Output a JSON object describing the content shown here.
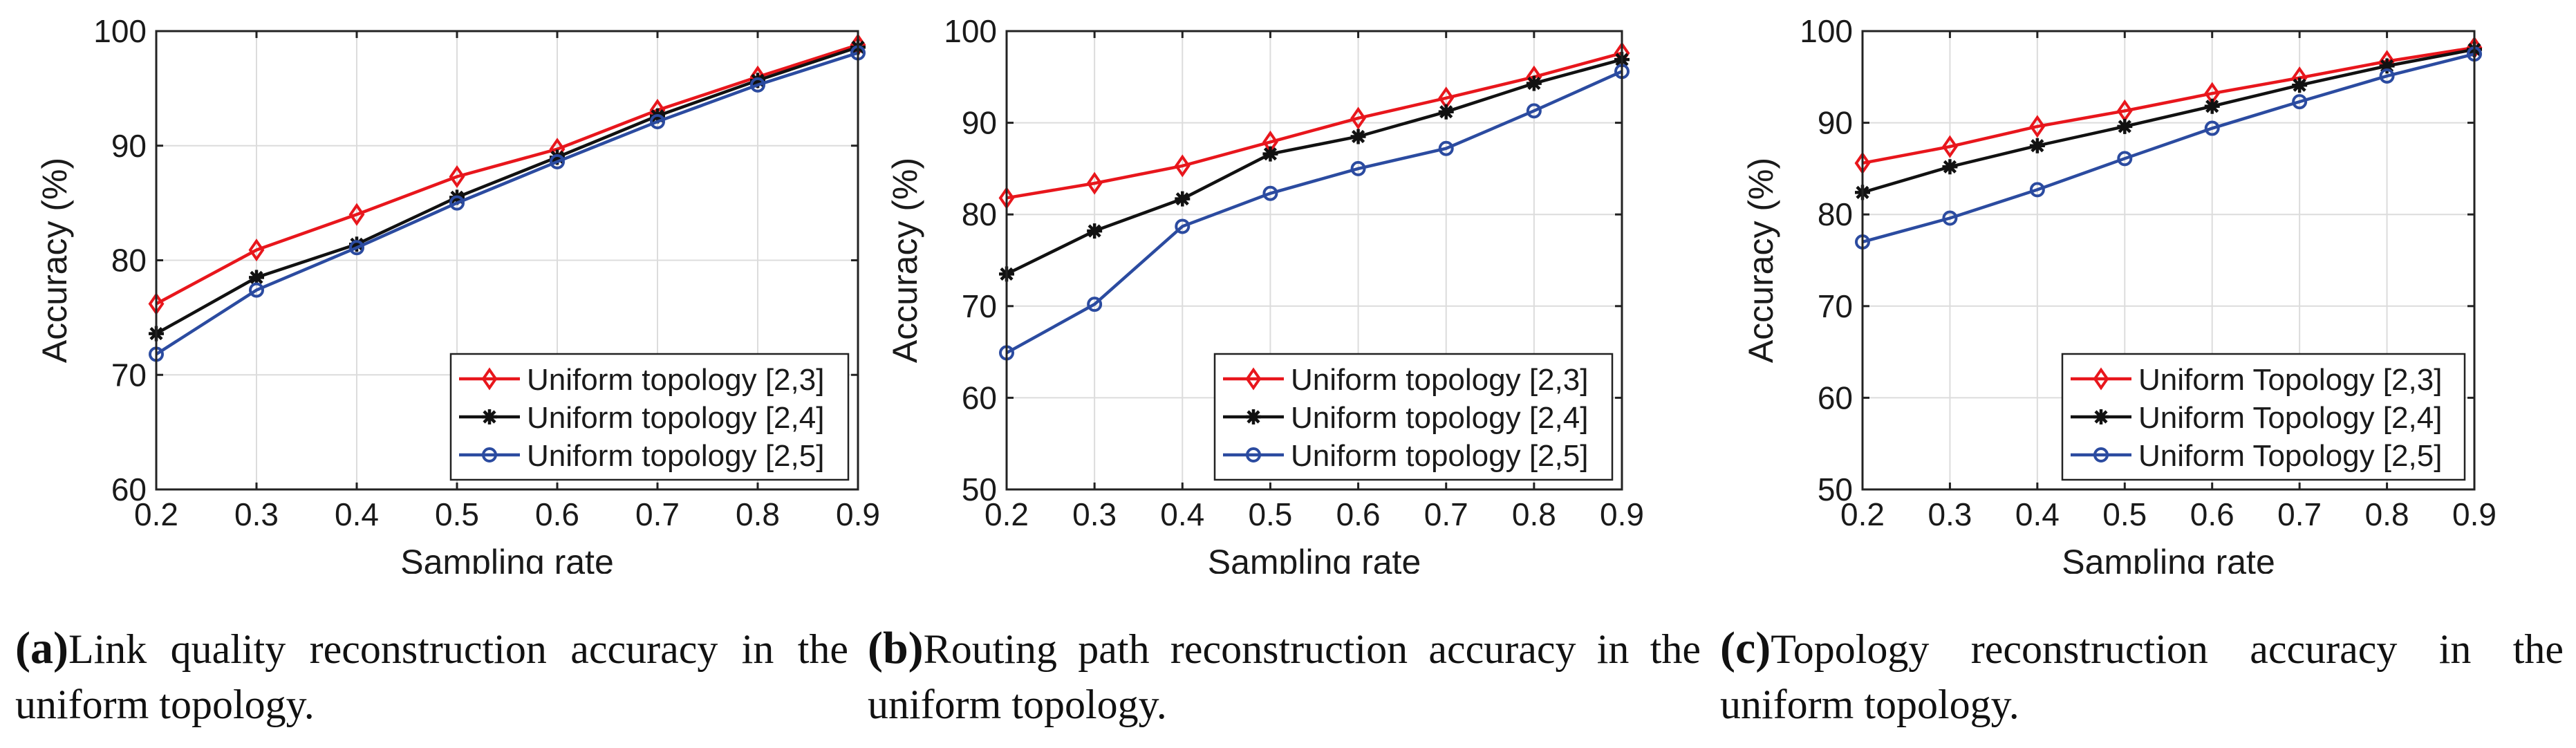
{
  "colors": {
    "red": "#e8161c",
    "black": "#111111",
    "blue": "#2b4ba0",
    "grid": "#dcdcdc"
  },
  "chart_data": [
    {
      "type": "line",
      "xlabel": "Sampling rate",
      "ylabel": "Accuracy (%)",
      "xlim": [
        0.2,
        0.9
      ],
      "ylim": [
        60,
        100
      ],
      "xticks": [
        "0.2",
        "0.3",
        "0.4",
        "0.5",
        "0.6",
        "0.7",
        "0.8",
        "0.9"
      ],
      "yticks": [
        "60",
        "70",
        "80",
        "90",
        "100"
      ],
      "grid": true,
      "legend_position": "bottom-right",
      "x": [
        0.2,
        0.3,
        0.4,
        0.5,
        0.6,
        0.7,
        0.8,
        0.9
      ],
      "series": [
        {
          "name": "Uniform topology [2,3]",
          "color": "red",
          "marker": "diamond",
          "values": [
            76.2,
            80.9,
            84.0,
            87.3,
            89.7,
            93.1,
            96.0,
            98.8
          ]
        },
        {
          "name": "Uniform topology [2,4]",
          "color": "black",
          "marker": "asterisk",
          "values": [
            73.6,
            78.5,
            81.4,
            85.5,
            89.0,
            92.6,
            95.7,
            98.6
          ]
        },
        {
          "name": "Uniform topology [2,5]",
          "color": "blue",
          "marker": "circle",
          "values": [
            71.8,
            77.4,
            81.1,
            85.0,
            88.6,
            92.1,
            95.3,
            98.1
          ]
        }
      ],
      "caption_label": "(a)",
      "caption_text": "Link quality reconstruction accuracy in the uniform topology."
    },
    {
      "type": "line",
      "xlabel": "Sampling rate",
      "ylabel": "Accuracy (%)",
      "xlim": [
        0.2,
        0.9
      ],
      "ylim": [
        50,
        100
      ],
      "xticks": [
        "0.2",
        "0.3",
        "0.4",
        "0.5",
        "0.6",
        "0.7",
        "0.8",
        "0.9"
      ],
      "yticks": [
        "50",
        "60",
        "70",
        "80",
        "90",
        "100"
      ],
      "grid": true,
      "legend_position": "bottom-right",
      "x": [
        0.2,
        0.3,
        0.4,
        0.5,
        0.6,
        0.7,
        0.8,
        0.9
      ],
      "series": [
        {
          "name": "Uniform topology [2,3]",
          "color": "red",
          "marker": "diamond",
          "values": [
            81.8,
            83.4,
            85.3,
            87.9,
            90.5,
            92.7,
            95.0,
            97.6
          ]
        },
        {
          "name": "Uniform topology [2,4]",
          "color": "black",
          "marker": "asterisk",
          "values": [
            73.5,
            78.2,
            81.7,
            86.6,
            88.5,
            91.2,
            94.3,
            96.9
          ]
        },
        {
          "name": "Uniform topology [2,5]",
          "color": "blue",
          "marker": "circle",
          "values": [
            64.9,
            70.2,
            78.7,
            82.3,
            85.0,
            87.2,
            91.3,
            95.6
          ]
        }
      ],
      "caption_label": "(b)",
      "caption_text": "Routing path reconstruction accuracy in the uniform topology."
    },
    {
      "type": "line",
      "xlabel": "Sampling rate",
      "ylabel": "Accuracy (%)",
      "xlim": [
        0.2,
        0.9
      ],
      "ylim": [
        50,
        100
      ],
      "xticks": [
        "0.2",
        "0.3",
        "0.4",
        "0.5",
        "0.6",
        "0.7",
        "0.8",
        "0.9"
      ],
      "yticks": [
        "50",
        "60",
        "70",
        "80",
        "90",
        "100"
      ],
      "grid": true,
      "legend_position": "bottom-right",
      "x": [
        0.2,
        0.3,
        0.4,
        0.5,
        0.6,
        0.7,
        0.8,
        0.9
      ],
      "series": [
        {
          "name": "Uniform Topology [2,3]",
          "color": "red",
          "marker": "diamond",
          "values": [
            85.6,
            87.4,
            89.6,
            91.3,
            93.2,
            94.9,
            96.7,
            98.2
          ]
        },
        {
          "name": "Uniform Topology [2,4]",
          "color": "black",
          "marker": "asterisk",
          "values": [
            82.4,
            85.2,
            87.5,
            89.6,
            91.8,
            94.1,
            96.2,
            98.0
          ]
        },
        {
          "name": "Uniform Topology [2,5]",
          "color": "blue",
          "marker": "circle",
          "values": [
            77.0,
            79.6,
            82.7,
            86.1,
            89.4,
            92.3,
            95.1,
            97.5
          ]
        }
      ],
      "caption_label": "(c)",
      "caption_text": "Topology reconstruction accuracy in the uniform topology."
    }
  ]
}
